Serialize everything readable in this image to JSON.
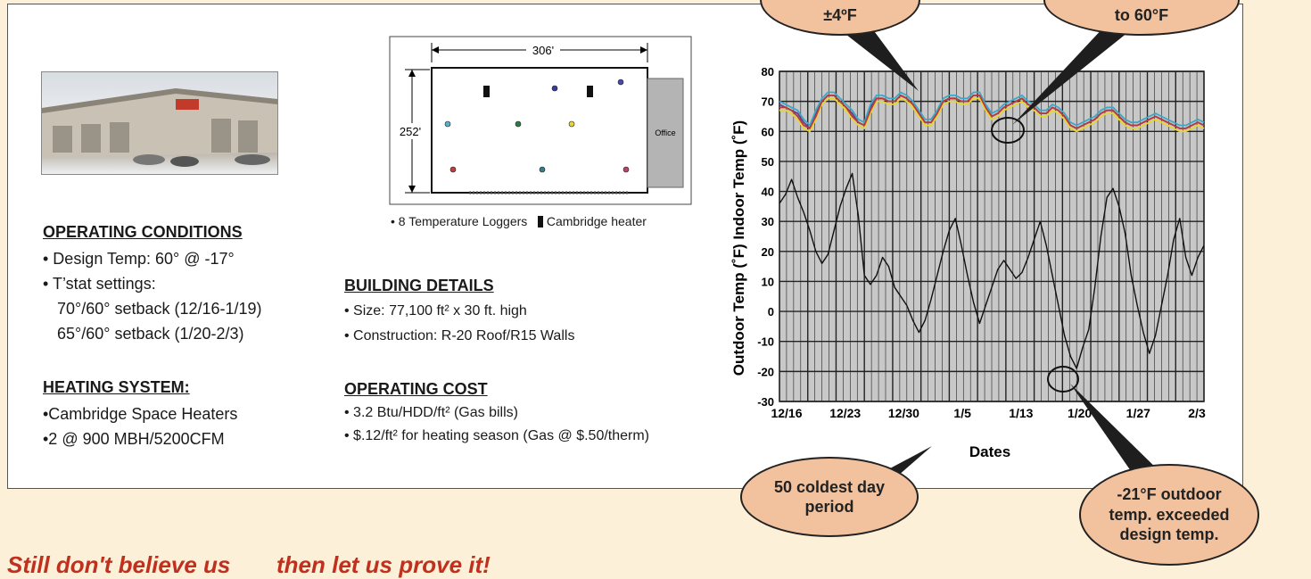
{
  "plan": {
    "width_label": "306'",
    "height_label": "252'",
    "office_label": "Office"
  },
  "legend": {
    "loggers": "• 8 Temperature Loggers",
    "heater": "Cambridge heater"
  },
  "operating_conditions": {
    "heading": "OPERATING CONDITIONS",
    "design_temp": "• Design Temp:  60° @ -17°",
    "tstat": "• T’stat settings:",
    "setting1": "70°/60° setback (12/16-1/19)",
    "setting2": "65°/60° setback (1/20-2/3)"
  },
  "heating_system": {
    "heading": "HEATING SYSTEM:",
    "line1": "•Cambridge Space Heaters",
    "line2": "•2  @  900 MBH/5200CFM"
  },
  "building_details": {
    "heading": "BUILDING DETAILS",
    "size": "• Size:  77,100 ft² x 30 ft. high",
    "construction": "• Construction:  R-20 Roof/R15 Walls"
  },
  "operating_cost": {
    "heading": "OPERATING COST",
    "line1": "• 3.2 Btu/HDD/ft² (Gas bills)",
    "line2": "• $.12/ft² for heating season (Gas @ $.50/therm)"
  },
  "callouts": {
    "top_left": "±4ºF",
    "top_right": "to 60°F",
    "bottom_left": "50 coldest day period",
    "bottom_right": "-21°F outdoor temp. exceeded design temp."
  },
  "footer": {
    "left": "Still don't believe us",
    "right": "then let us prove it!"
  },
  "colors": {
    "indoor_series": [
      "#6a3d8f",
      "#e8d530",
      "#3aa8c8",
      "#b83a3a"
    ],
    "outdoor_series": "#111111",
    "plot_bg": "#c8c8c8",
    "bubble": "#f2c19e"
  },
  "chart_data": {
    "type": "line",
    "xlabel": "Dates",
    "ylabel_outdoor": "Outdoor Temp (˚F)",
    "ylabel_indoor": "Indoor Temp (˚F)",
    "ylim": [
      -30,
      80
    ],
    "yticks": [
      -30,
      -20,
      -10,
      0,
      10,
      20,
      30,
      40,
      50,
      60,
      70,
      80
    ],
    "xticks": [
      "12/16",
      "12/23",
      "12/30",
      "1/5",
      "1/13",
      "1/20",
      "1/27",
      "2/3"
    ],
    "grid": true,
    "series": [
      {
        "values": [
          69,
          68,
          67,
          66,
          63,
          61,
          66,
          70,
          72,
          72,
          70,
          68,
          66,
          63,
          62,
          68,
          71,
          71,
          70,
          70,
          72,
          71,
          69,
          66,
          63,
          63,
          66,
          70,
          71,
          71,
          70,
          70,
          72,
          72,
          68,
          65,
          66,
          68,
          69,
          70,
          71,
          69,
          68,
          66,
          66,
          68,
          67,
          65,
          62,
          61,
          62,
          63,
          64,
          66,
          67,
          67,
          65,
          63,
          62,
          62,
          63,
          64,
          65,
          64,
          63,
          62,
          61,
          61,
          62,
          63,
          62
        ]
      },
      {
        "values": [
          67,
          67,
          66,
          64,
          61,
          60,
          64,
          69,
          71,
          71,
          69,
          67,
          64,
          62,
          61,
          66,
          70,
          70,
          69,
          69,
          71,
          70,
          68,
          65,
          62,
          62,
          65,
          69,
          70,
          70,
          69,
          69,
          71,
          71,
          67,
          64,
          65,
          67,
          68,
          69,
          70,
          68,
          67,
          65,
          65,
          67,
          66,
          64,
          61,
          60,
          61,
          62,
          63,
          65,
          66,
          66,
          64,
          62,
          61,
          61,
          62,
          63,
          64,
          63,
          62,
          61,
          60,
          60,
          61,
          62,
          61
        ]
      },
      {
        "values": [
          70,
          69,
          68,
          67,
          64,
          62,
          67,
          71,
          73,
          73,
          71,
          69,
          67,
          64,
          63,
          69,
          72,
          72,
          71,
          71,
          73,
          72,
          70,
          67,
          64,
          64,
          67,
          71,
          72,
          72,
          71,
          71,
          73,
          73,
          69,
          66,
          67,
          69,
          70,
          71,
          72,
          70,
          69,
          67,
          67,
          69,
          68,
          66,
          63,
          62,
          63,
          64,
          65,
          67,
          68,
          68,
          66,
          64,
          63,
          63,
          64,
          65,
          66,
          65,
          64,
          63,
          62,
          62,
          63,
          64,
          63
        ]
      },
      {
        "values": [
          68,
          68,
          67,
          65,
          62,
          61,
          65,
          70,
          72,
          72,
          70,
          68,
          65,
          63,
          62,
          67,
          71,
          71,
          70,
          70,
          72,
          71,
          69,
          66,
          63,
          63,
          66,
          70,
          71,
          71,
          70,
          70,
          72,
          72,
          68,
          65,
          66,
          68,
          69,
          70,
          71,
          69,
          68,
          66,
          66,
          68,
          67,
          65,
          62,
          61,
          62,
          63,
          64,
          66,
          67,
          67,
          65,
          63,
          62,
          62,
          63,
          64,
          65,
          64,
          63,
          62,
          61,
          61,
          62,
          63,
          62
        ]
      },
      {
        "values": [
          36,
          39,
          44,
          38,
          33,
          27,
          20,
          16,
          19,
          27,
          35,
          41,
          46,
          32,
          12,
          9,
          12,
          18,
          15,
          8,
          5,
          2,
          -3,
          -7,
          -3,
          4,
          12,
          20,
          27,
          31,
          22,
          12,
          3,
          -4,
          2,
          8,
          14,
          17,
          14,
          11,
          13,
          18,
          24,
          30,
          22,
          12,
          2,
          -8,
          -15,
          -19,
          -12,
          -6,
          8,
          25,
          38,
          41,
          35,
          26,
          12,
          2,
          -7,
          -14,
          -8,
          2,
          12,
          24,
          31,
          18,
          12,
          18,
          22
        ]
      }
    ]
  }
}
